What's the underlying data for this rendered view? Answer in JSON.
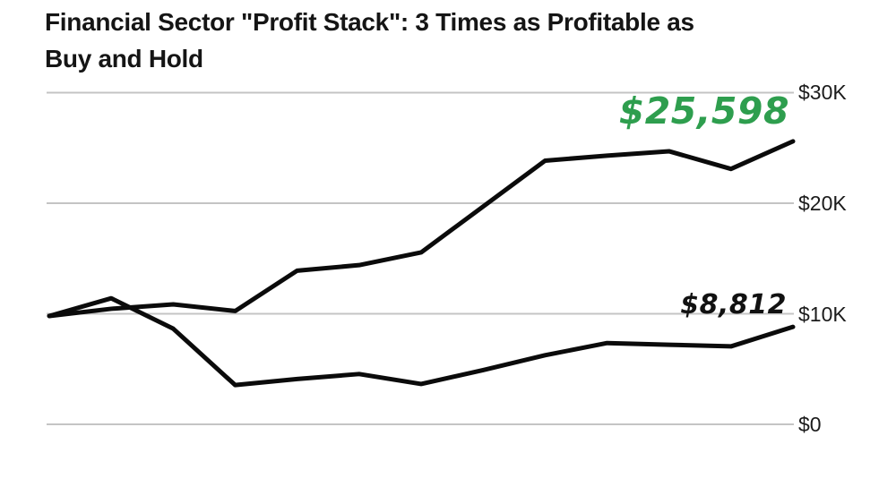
{
  "title": {
    "line1": "Financial Sector \"Profit Stack\": 3 Times as Profitable as",
    "line2": "Buy and Hold"
  },
  "axis": {
    "y_labels": [
      {
        "text": "$30K",
        "value": 30000
      },
      {
        "text": "$20K",
        "value": 20000
      },
      {
        "text": "$10K",
        "value": 10000
      },
      {
        "text": "$0",
        "value": 0
      }
    ]
  },
  "annotations": [
    {
      "text": "$25,598",
      "series": "Financial Sector Profit Stack",
      "color": "#2e9e4e"
    },
    {
      "text": "$8,812",
      "series": "Buy and Hold",
      "color": "#111111"
    }
  ],
  "colors": {
    "line": "#0b0b0b",
    "gridline": "#c4c4c4",
    "title_text": "#151515",
    "axis_label": "#1b1b1b",
    "accent_green": "#2e9e4e"
  },
  "chart_data": {
    "type": "line",
    "title": "Financial Sector \"Profit Stack\": 3 Times as Profitable as Buy and Hold",
    "x": [
      0,
      1,
      2,
      3,
      4,
      5,
      6,
      7,
      8,
      9,
      10,
      11,
      12
    ],
    "xlabel": "",
    "ylabel": "",
    "ylim": [
      0,
      30000
    ],
    "y_ticks": [
      "$0",
      "$10K",
      "$20K",
      "$30K"
    ],
    "grid": "horizontal",
    "x_axis_labels": "none",
    "legend": "none",
    "series": [
      {
        "name": "Financial Sector Profit Stack",
        "end_label": "$25,598",
        "end_value": 25598,
        "values": [
          9800,
          10450,
          10850,
          10250,
          13900,
          14400,
          15550,
          19700,
          23850,
          24300,
          24700,
          23100,
          25598
        ]
      },
      {
        "name": "Buy and Hold",
        "end_label": "$8,812",
        "end_value": 8812,
        "values": [
          9800,
          11400,
          8650,
          3550,
          4100,
          4550,
          3650,
          4900,
          6250,
          7350,
          7200,
          7050,
          8812
        ]
      }
    ]
  }
}
